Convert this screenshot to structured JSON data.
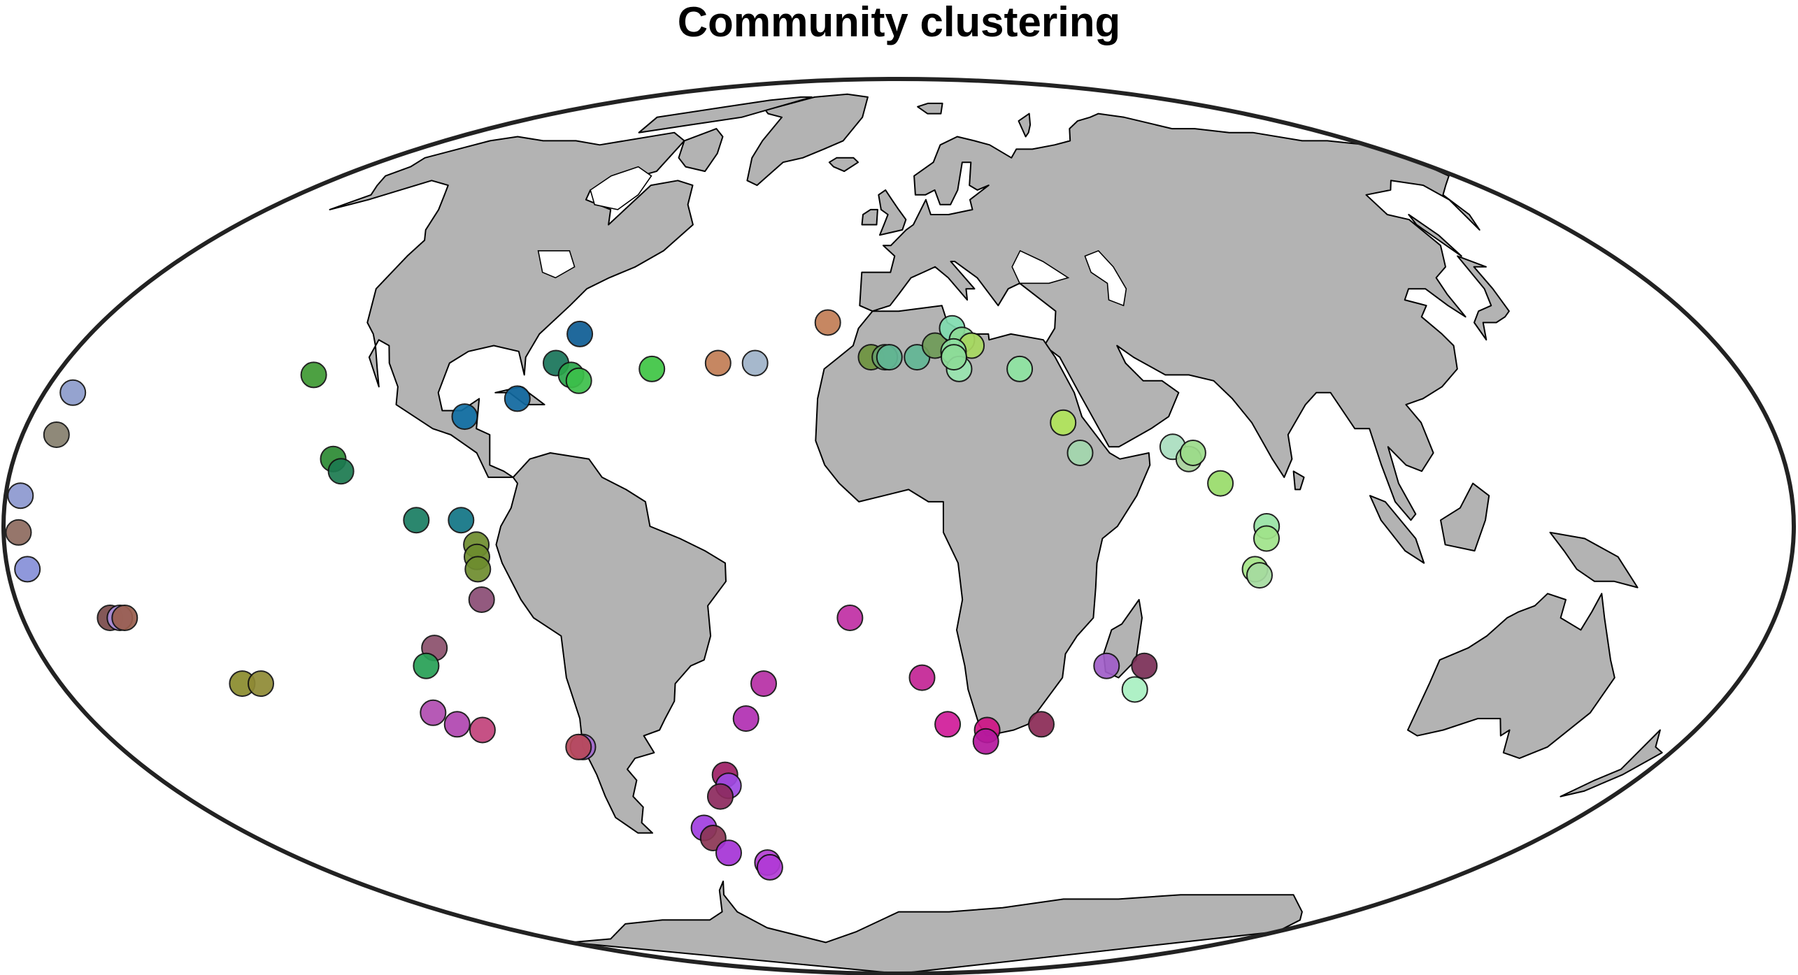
{
  "title": "Community clustering",
  "colors": {
    "land": "#b3b3b3",
    "ocean": "#ffffff",
    "coastline": "#000000",
    "border": "#222222"
  },
  "map": {
    "projection": "mollweide",
    "points": [
      {
        "lon": -174,
        "lat": 22,
        "color": "#8d9ccb"
      },
      {
        "lon": -173,
        "lat": 15,
        "color": "#86806e"
      },
      {
        "lon": -177,
        "lat": 5,
        "color": "#8d98d0"
      },
      {
        "lon": -177,
        "lat": -1,
        "color": "#8e6b5f"
      },
      {
        "lon": -176,
        "lat": -7,
        "color": "#8690d8"
      },
      {
        "lon": -162,
        "lat": -15,
        "color": "#7a4a4a"
      },
      {
        "lon": -160,
        "lat": -15,
        "color": "#ad8fdc"
      },
      {
        "lon": -159,
        "lat": -15,
        "color": "#9a5e4e"
      },
      {
        "lon": -141,
        "lat": -26,
        "color": "#8a8b2d"
      },
      {
        "lon": -137,
        "lat": -26,
        "color": "#8f8a35"
      },
      {
        "lon": -125,
        "lat": 25,
        "color": "#3e9a32"
      },
      {
        "lon": -115,
        "lat": 11,
        "color": "#2c8a34"
      },
      {
        "lon": -113,
        "lat": 9,
        "color": "#1c7a50"
      },
      {
        "lon": -97,
        "lat": 1,
        "color": "#1a7d62"
      },
      {
        "lon": -88,
        "lat": 1,
        "color": "#117585"
      },
      {
        "lon": -85,
        "lat": -3,
        "color": "#6e8d2e"
      },
      {
        "lon": -85,
        "lat": -5,
        "color": "#6e8d2e"
      },
      {
        "lon": -85,
        "lat": -7,
        "color": "#6e8d2e"
      },
      {
        "lon": -85,
        "lat": -12,
        "color": "#8a4d75"
      },
      {
        "lon": -97,
        "lat": -20,
        "color": "#8c506c"
      },
      {
        "lon": -100,
        "lat": -23,
        "color": "#27a055"
      },
      {
        "lon": -103,
        "lat": -31,
        "color": "#b04db0"
      },
      {
        "lon": -99,
        "lat": -33,
        "color": "#b046b0"
      },
      {
        "lon": -94,
        "lat": -34,
        "color": "#c2437b"
      },
      {
        "lon": -90,
        "lat": 18,
        "color": "#116fa4"
      },
      {
        "lon": -80,
        "lat": 21,
        "color": "#10689f"
      },
      {
        "lon": -71,
        "lat": 32,
        "color": "#0e5d94"
      },
      {
        "lon": -74,
        "lat": 27,
        "color": "#18755a"
      },
      {
        "lon": -70,
        "lat": 25,
        "color": "#2aa64a"
      },
      {
        "lon": -68,
        "lat": 24,
        "color": "#3cc04a"
      },
      {
        "lon": -53,
        "lat": 26,
        "color": "#3ec544"
      },
      {
        "lon": -39,
        "lat": 27,
        "color": "#c27d55"
      },
      {
        "lon": -31,
        "lat": 27,
        "color": "#9fb3c8"
      },
      {
        "lon": -16,
        "lat": 34,
        "color": "#c27d55"
      },
      {
        "lon": -6,
        "lat": 28,
        "color": "#6e9440"
      },
      {
        "lon": -3,
        "lat": 28,
        "color": "#69a06a"
      },
      {
        "lon": -2,
        "lat": 28,
        "color": "#62b795"
      },
      {
        "lon": 4,
        "lat": 28,
        "color": "#62b795"
      },
      {
        "lon": 8,
        "lat": 30,
        "color": "#6f9c58"
      },
      {
        "lon": 12,
        "lat": 33,
        "color": "#7fdcaf"
      },
      {
        "lon": 14,
        "lat": 31,
        "color": "#8ddc98"
      },
      {
        "lon": 16,
        "lat": 30,
        "color": "#a8d860"
      },
      {
        "lon": 12,
        "lat": 29,
        "color": "#8ee0a0"
      },
      {
        "lon": 13,
        "lat": 26,
        "color": "#9ae6b0"
      },
      {
        "lon": 12,
        "lat": 28,
        "color": "#8ddc98"
      },
      {
        "lon": 26,
        "lat": 26,
        "color": "#8fe5a2"
      },
      {
        "lon": 34,
        "lat": 17,
        "color": "#b1e55b"
      },
      {
        "lon": 37,
        "lat": 12,
        "color": "#a3d7ae"
      },
      {
        "lon": 56,
        "lat": 13,
        "color": "#aadec0"
      },
      {
        "lon": 59,
        "lat": 11,
        "color": "#a8d29c"
      },
      {
        "lon": 60,
        "lat": 12,
        "color": "#9cdc8a"
      },
      {
        "lon": 65,
        "lat": 7,
        "color": "#98dc6a"
      },
      {
        "lon": 74,
        "lat": 0,
        "color": "#98e3a4"
      },
      {
        "lon": 74,
        "lat": -2,
        "color": "#a0e38a"
      },
      {
        "lon": 72,
        "lat": -7,
        "color": "#a5e588"
      },
      {
        "lon": 73,
        "lat": -8,
        "color": "#a6dca0"
      },
      {
        "lon": -10,
        "lat": -15,
        "color": "#c12fa4"
      },
      {
        "lon": 5,
        "lat": -25,
        "color": "#c42495"
      },
      {
        "lon": 11,
        "lat": -33,
        "color": "#d11c9a"
      },
      {
        "lon": 20,
        "lat": -34,
        "color": "#cf1486"
      },
      {
        "lon": 20,
        "lat": -36,
        "color": "#b5199e"
      },
      {
        "lon": 32,
        "lat": -33,
        "color": "#8a2a55"
      },
      {
        "lon": 44,
        "lat": -23,
        "color": "#a05ec8"
      },
      {
        "lon": 52,
        "lat": -23,
        "color": "#7a2e56"
      },
      {
        "lon": 51,
        "lat": -27,
        "color": "#a9f0c2"
      },
      {
        "lon": -29,
        "lat": -26,
        "color": "#b72fa5"
      },
      {
        "lon": -34,
        "lat": -32,
        "color": "#b12fb2"
      },
      {
        "lon": -73,
        "lat": -37,
        "color": "#a46ad0"
      },
      {
        "lon": -74,
        "lat": -37,
        "color": "#b8485a"
      },
      {
        "lon": -42,
        "lat": -42,
        "color": "#9e1f66"
      },
      {
        "lon": -42,
        "lat": -44,
        "color": "#9f4ae3"
      },
      {
        "lon": -45,
        "lat": -46,
        "color": "#8d2a5e"
      },
      {
        "lon": -53,
        "lat": -52,
        "color": "#a13ee0"
      },
      {
        "lon": -52,
        "lat": -54,
        "color": "#8b3654"
      },
      {
        "lon": -50,
        "lat": -57,
        "color": "#a534d6"
      },
      {
        "lon": -40,
        "lat": -59,
        "color": "#b53ed4"
      },
      {
        "lon": -40,
        "lat": -60,
        "color": "#b13ad6"
      }
    ]
  }
}
